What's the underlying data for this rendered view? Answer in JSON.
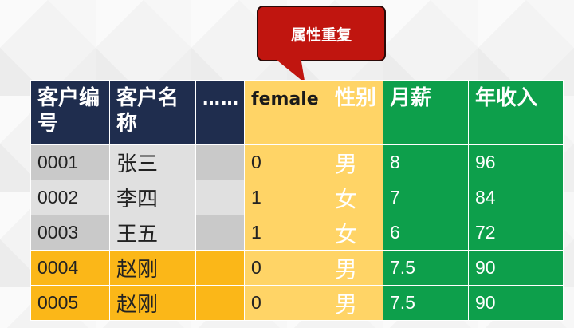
{
  "callout": {
    "label": "属性重复"
  },
  "table": {
    "headers": [
      "客户编号",
      "客户名称",
      "……",
      "female",
      "性别",
      "月薪",
      "年收入"
    ],
    "rows": [
      [
        "0001",
        "张三",
        "",
        "0",
        "男",
        "8",
        "96"
      ],
      [
        "0002",
        "李四",
        "",
        "1",
        "女",
        "7",
        "84"
      ],
      [
        "0003",
        "王五",
        "",
        "1",
        "女",
        "6",
        "72"
      ],
      [
        "0004",
        "赵刚",
        "",
        "0",
        "男",
        "7.5",
        "90"
      ],
      [
        "0005",
        "赵刚",
        "",
        "0",
        "男",
        "7.5",
        "90"
      ]
    ]
  },
  "colors": {
    "header_navy": "#1f2d4e",
    "yellow": "#ffd466",
    "green": "#0d9f4b",
    "orange": "#fbb718",
    "callout_red": "#c0150f"
  }
}
